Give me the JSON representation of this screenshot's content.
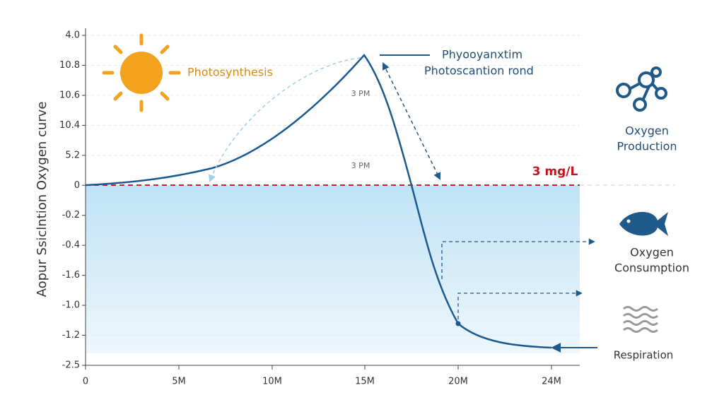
{
  "axis": {
    "y_title": "Aopur Ssiclntion Oxygen curve",
    "y_labels": [
      "4.0",
      "10.8",
      "10.6",
      "10.4",
      "5.2",
      "0",
      "-0.2",
      "-0.4",
      "-1.6",
      "-1.0",
      "-1.2",
      "-2.5"
    ],
    "x_labels": [
      "0",
      "5M",
      "10M",
      "15M",
      "20M",
      "24M"
    ]
  },
  "annotations": {
    "photosynthesis": "Photosynthesis",
    "peak_line1": "Phyooyanxtim",
    "peak_line2": "Photoscantion rond",
    "time1": "3 PM",
    "time2": "3 PM",
    "threshold": "3 mg/L"
  },
  "legend": {
    "production_1": "Oxygen",
    "production_2": "Production",
    "consumption_1": "Oxygen",
    "consumption_2": "Consumption",
    "respiration": "Respiration"
  }
}
